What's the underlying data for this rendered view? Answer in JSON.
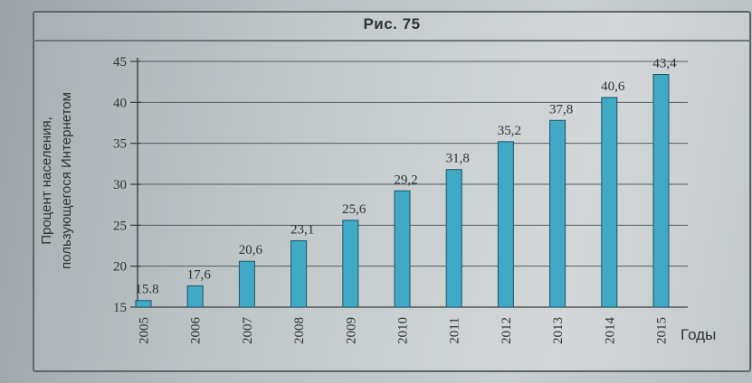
{
  "figure": {
    "caption": "Рис. 75"
  },
  "chart_data": {
    "type": "bar",
    "categories": [
      "2005",
      "2006",
      "2007",
      "2008",
      "2009",
      "2010",
      "2011",
      "2012",
      "2013",
      "2014",
      "2015"
    ],
    "values": [
      15.8,
      17.6,
      20.6,
      23.1,
      25.6,
      29.2,
      31.8,
      35.2,
      37.8,
      40.6,
      43.4
    ],
    "value_labels": [
      "15.8",
      "17,6",
      "20,6",
      "23,1",
      "25,6",
      "29,2",
      "31,8",
      "35,2",
      "37,8",
      "40,6",
      "43,4"
    ],
    "ylabel_lines": [
      "Процент населения,",
      "пользующегося Интернетом"
    ],
    "xlabel": "Годы",
    "ylim": [
      15,
      45
    ],
    "yticks": [
      15,
      20,
      25,
      30,
      35,
      40,
      45
    ],
    "ytick_labels": [
      "15",
      "20",
      "25",
      "30",
      "35",
      "40",
      "45"
    ],
    "grid": true,
    "bar_color": "#3fa9c6"
  }
}
